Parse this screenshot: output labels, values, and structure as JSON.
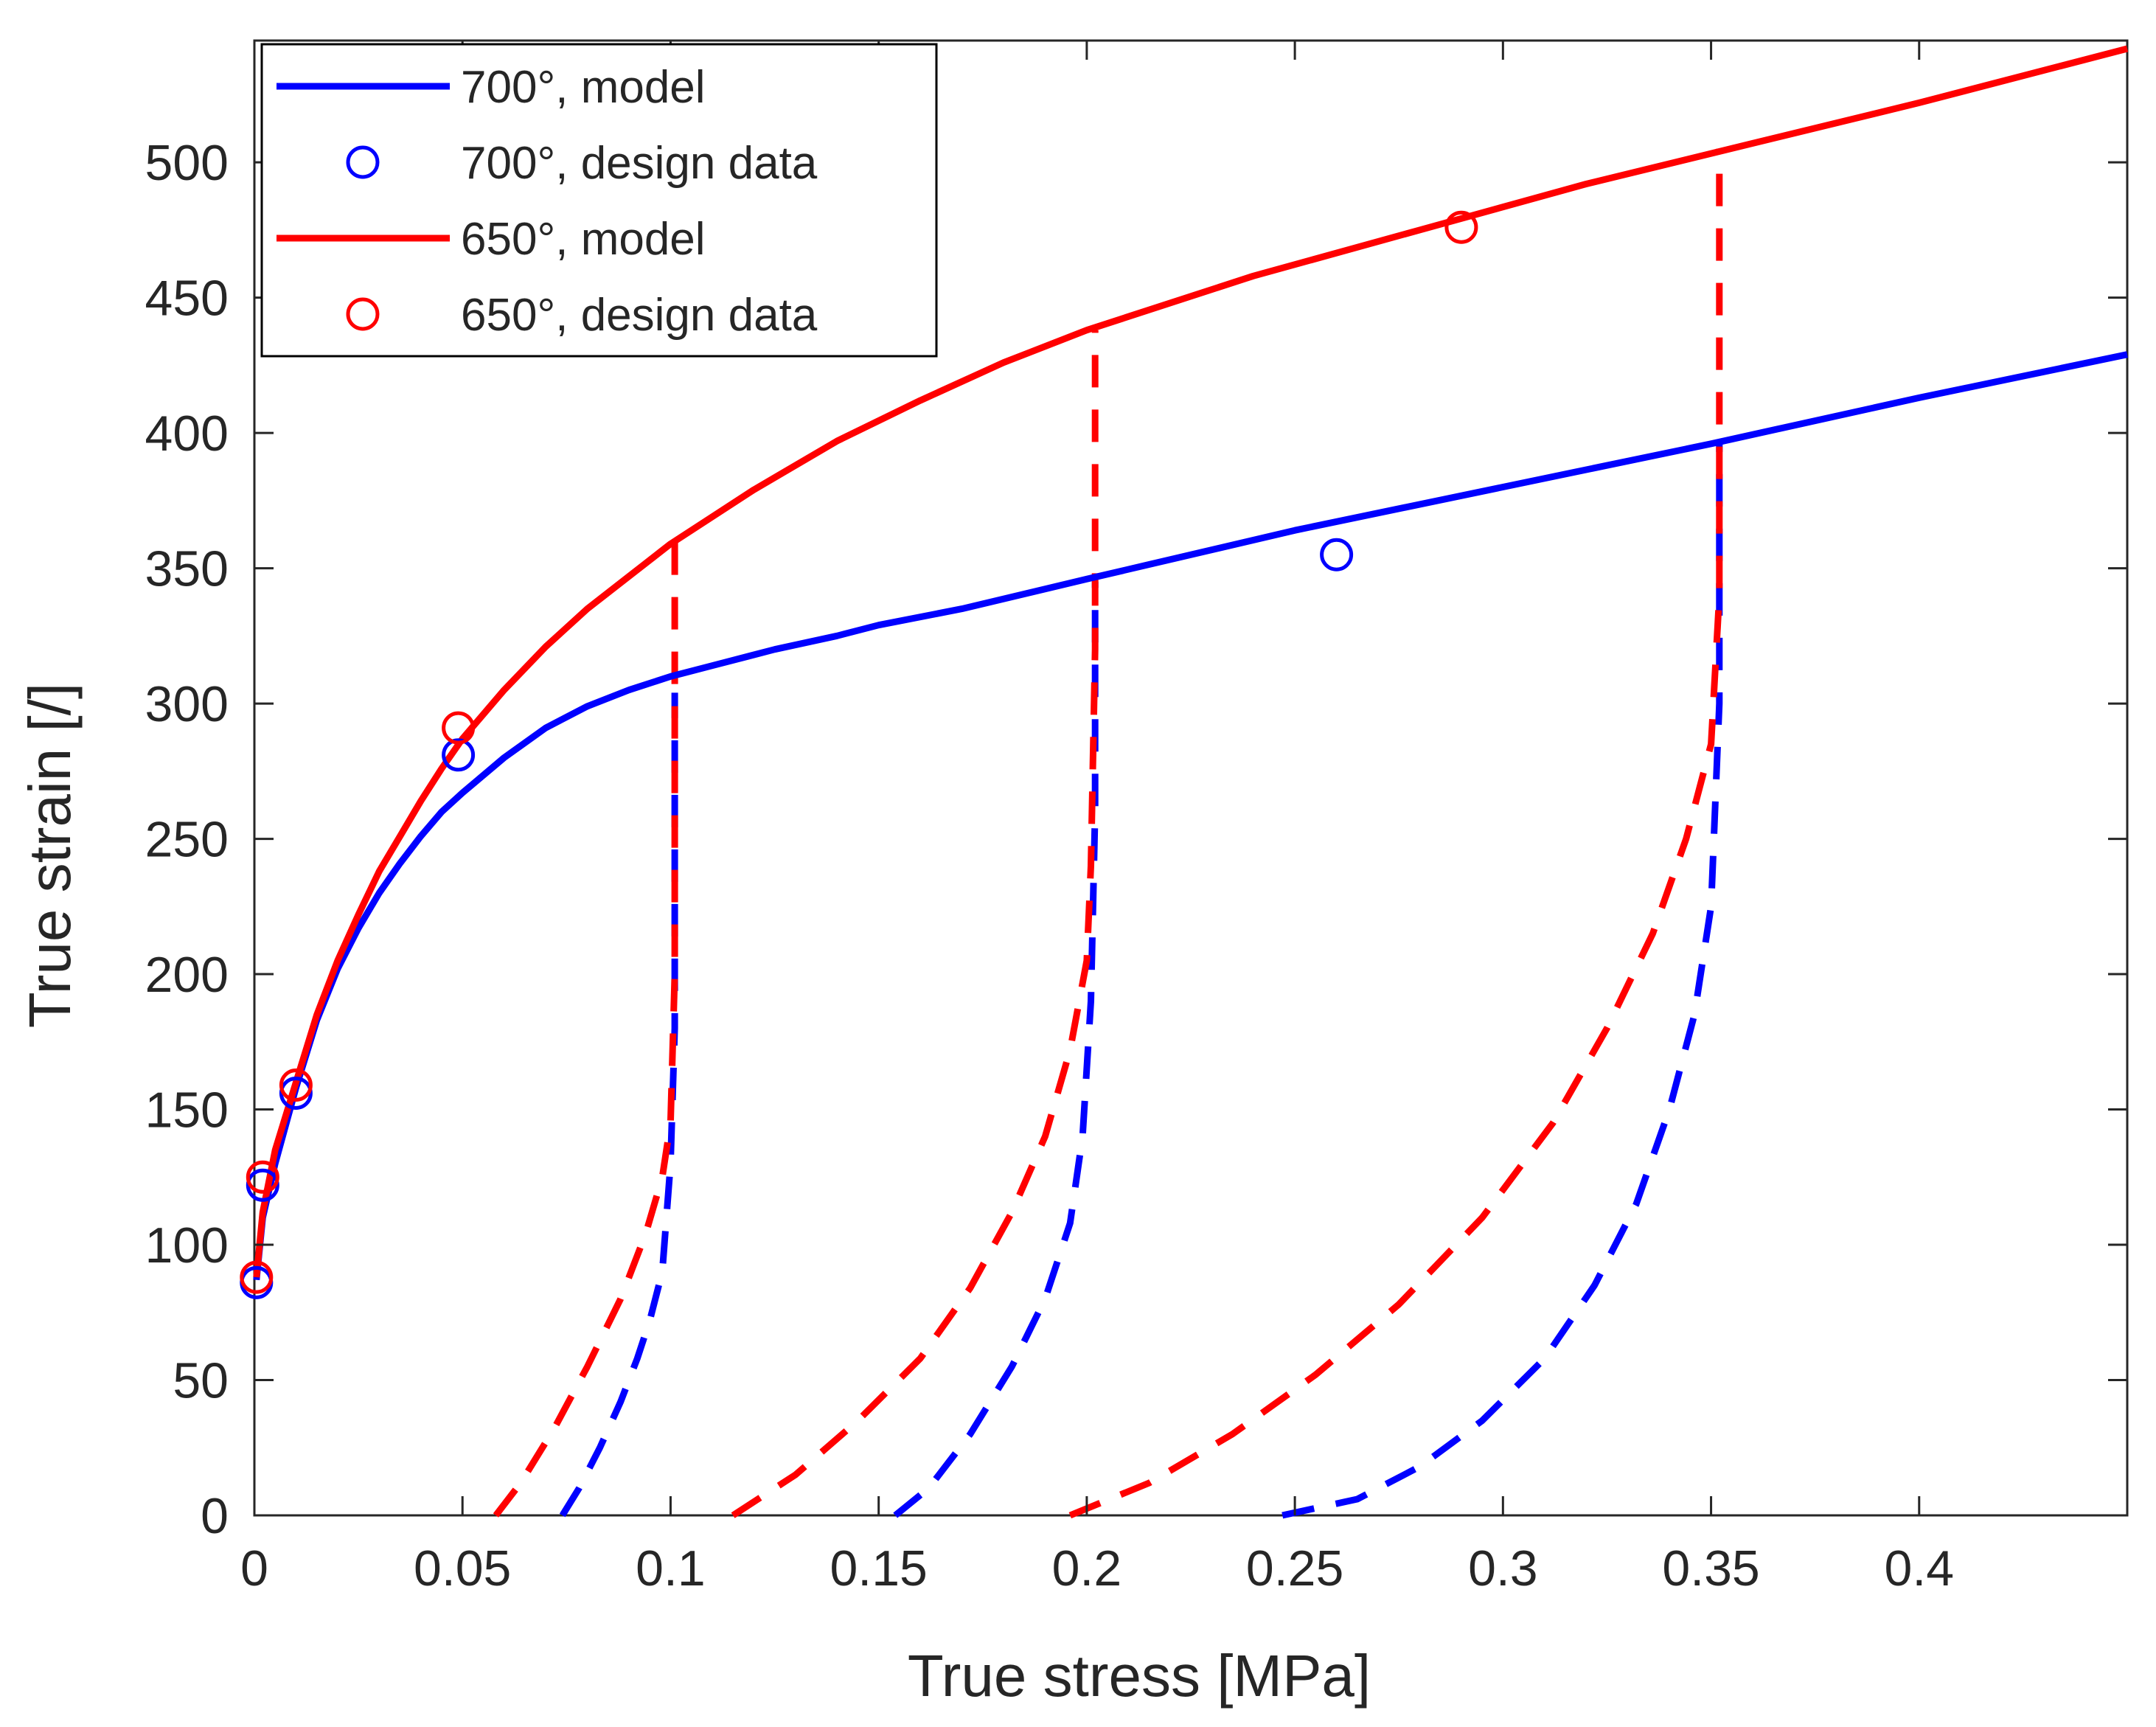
{
  "chart_data": {
    "type": "line",
    "xlabel": "True stress [MPa]",
    "ylabel": "True strain [/]",
    "xlim": [
      0,
      0.45
    ],
    "ylim": [
      0,
      545
    ],
    "xticks": [
      0,
      0.05,
      0.1,
      0.15,
      0.2,
      0.25,
      0.3,
      0.35,
      0.4
    ],
    "xtick_labels": [
      "0",
      "0.05",
      "0.1",
      "0.15",
      "0.2",
      "0.25",
      "0.3",
      "0.35",
      "0.4"
    ],
    "yticks": [
      0,
      50,
      100,
      150,
      200,
      250,
      300,
      350,
      400,
      450,
      500
    ],
    "ytick_labels": [
      "0",
      "50",
      "100",
      "150",
      "200",
      "250",
      "300",
      "350",
      "400",
      "450",
      "500"
    ],
    "legend_position": "top-left",
    "colors": {
      "blue": "#0000ff",
      "red": "#ff0000",
      "axes": "#262626"
    },
    "series": [
      {
        "name": "700°, model",
        "kind": "line",
        "style": "solid",
        "color": "#0000ff",
        "x": [
          0.0005,
          0.002,
          0.005,
          0.01,
          0.015,
          0.02,
          0.025,
          0.03,
          0.035,
          0.04,
          0.045,
          0.05,
          0.06,
          0.07,
          0.08,
          0.09,
          0.1,
          0.11,
          0.125,
          0.14,
          0.15,
          0.17,
          0.2,
          0.25,
          0.3,
          0.35,
          0.4,
          0.45
        ],
        "y": [
          87,
          110,
          130,
          158,
          183,
          202,
          217,
          230,
          241,
          251,
          260,
          267,
          280,
          291,
          299,
          305,
          310,
          314,
          320,
          325,
          329,
          335,
          346,
          364,
          380,
          396,
          413,
          429
        ]
      },
      {
        "name": "700°, design data",
        "kind": "markers",
        "marker": "circle",
        "color": "#0000ff",
        "x": [
          0.0005,
          0.002,
          0.01,
          0.049,
          0.26
        ],
        "y": [
          86,
          122,
          156,
          281,
          355
        ]
      },
      {
        "name": "650°, model",
        "kind": "line",
        "style": "solid",
        "color": "#ff0000",
        "x": [
          0.0005,
          0.002,
          0.005,
          0.01,
          0.015,
          0.02,
          0.025,
          0.03,
          0.035,
          0.04,
          0.045,
          0.05,
          0.06,
          0.07,
          0.08,
          0.09,
          0.1,
          0.11,
          0.12,
          0.14,
          0.16,
          0.18,
          0.2,
          0.24,
          0.28,
          0.32,
          0.36,
          0.4,
          0.45
        ],
        "y": [
          88,
          112,
          135,
          160,
          185,
          205,
          222,
          238,
          251,
          264,
          276,
          287,
          305,
          321,
          335,
          347,
          359,
          369,
          379,
          397,
          412,
          426,
          438,
          458,
          475,
          492,
          507,
          522,
          542
        ]
      },
      {
        "name": "650°, design data",
        "kind": "markers",
        "marker": "circle",
        "color": "#ff0000",
        "x": [
          0.0005,
          0.002,
          0.01,
          0.049,
          0.29
        ],
        "y": [
          88,
          125,
          159,
          291,
          476
        ]
      }
    ],
    "unloading_curves": [
      {
        "color": "#0000ff",
        "style": "dashed",
        "x": [
          0.074,
          0.078,
          0.083,
          0.088,
          0.092,
          0.095,
          0.098,
          0.1,
          0.101,
          0.101,
          0.101
        ],
        "y": [
          0,
          10,
          25,
          42,
          58,
          72,
          90,
          130,
          180,
          250,
          304
        ]
      },
      {
        "color": "#ff0000",
        "style": "dashed",
        "x": [
          0.058,
          0.064,
          0.072,
          0.08,
          0.088,
          0.094,
          0.098,
          0.1,
          0.101,
          0.101,
          0.101
        ],
        "y": [
          0,
          12,
          32,
          55,
          80,
          104,
          125,
          145,
          200,
          280,
          363
        ]
      },
      {
        "color": "#0000ff",
        "style": "dashed",
        "x": [
          0.154,
          0.162,
          0.172,
          0.182,
          0.19,
          0.196,
          0.199,
          0.201,
          0.202,
          0.202
        ],
        "y": [
          0,
          10,
          30,
          55,
          80,
          108,
          140,
          190,
          260,
          345
        ]
      },
      {
        "color": "#ff0000",
        "style": "dashed",
        "x": [
          0.115,
          0.13,
          0.145,
          0.16,
          0.172,
          0.182,
          0.19,
          0.196,
          0.2,
          0.201,
          0.202,
          0.202
        ],
        "y": [
          0,
          15,
          35,
          58,
          84,
          112,
          140,
          172,
          205,
          240,
          320,
          438
        ]
      },
      {
        "color": "#0000ff",
        "style": "dashed",
        "x": [
          0.247,
          0.265,
          0.28,
          0.295,
          0.31,
          0.322,
          0.332,
          0.34,
          0.346,
          0.35,
          0.352,
          0.352
        ],
        "y": [
          0,
          6,
          18,
          35,
          58,
          85,
          115,
          150,
          185,
          225,
          300,
          396
        ]
      },
      {
        "color": "#ff0000",
        "style": "dashed",
        "x": [
          0.196,
          0.215,
          0.235,
          0.255,
          0.275,
          0.295,
          0.312,
          0.325,
          0.336,
          0.344,
          0.35,
          0.352,
          0.352
        ],
        "y": [
          0,
          12,
          30,
          52,
          78,
          110,
          145,
          180,
          215,
          250,
          285,
          340,
          505
        ]
      }
    ]
  }
}
